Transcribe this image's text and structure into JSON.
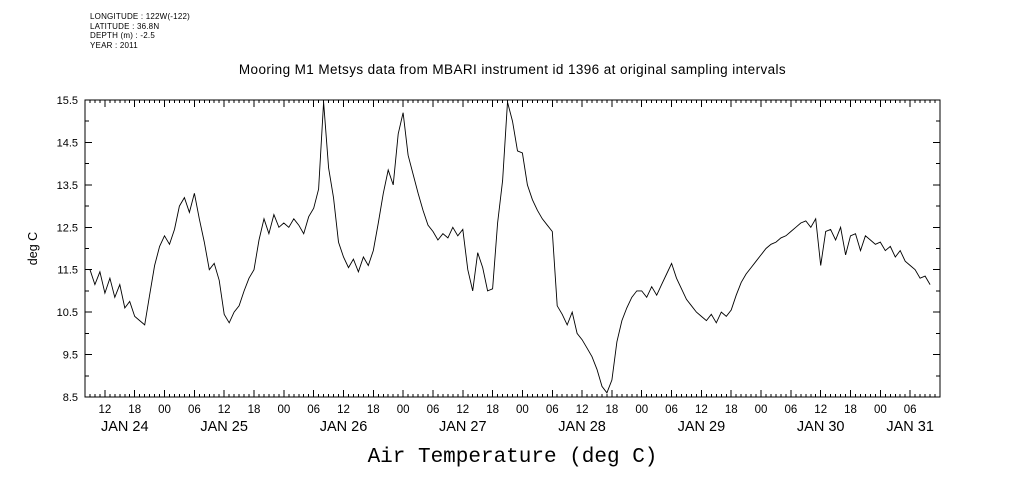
{
  "header": {
    "meta_lines": [
      "LONGITUDE : 122W(-122)",
      "LATITUDE : 36.8N",
      "DEPTH (m) : -2.5",
      "YEAR : 2011"
    ],
    "title": "Mooring M1 Metsys data from MBARI instrument id 1396 at original sampling intervals"
  },
  "footer": {
    "caption": "Air Temperature (deg C)"
  },
  "chart_data": {
    "type": "line",
    "title": "Mooring M1 Metsys data from MBARI instrument id 1396 at original sampling intervals",
    "xlabel": "Air Temperature (deg C)",
    "ylabel": "deg C",
    "year": 2011,
    "grid": false,
    "legend": "none",
    "line_color": "#000000",
    "ylim": [
      8.5,
      15.5
    ],
    "y_major_tick_interval": 1.0,
    "y_minor_tick_interval": 0.5,
    "y_tick_labels": [
      "8.5",
      "9.5",
      "10.5",
      "11.5",
      "12.5",
      "13.5",
      "14.5",
      "15.5"
    ],
    "xlim_hours_since_jan24": [
      8,
      180
    ],
    "x_ticks": {
      "start_hour": 12,
      "interval_hours": 6,
      "labels": [
        "12",
        "18",
        "00",
        "06",
        "12",
        "18",
        "00",
        "06",
        "12",
        "18",
        "00",
        "06",
        "12",
        "18",
        "00",
        "06",
        "12",
        "18",
        "00",
        "06",
        "12",
        "18",
        "00",
        "06",
        "12",
        "18",
        "00",
        "06"
      ]
    },
    "days": [
      {
        "label": "JAN 24",
        "start_hour": 0
      },
      {
        "label": "JAN 25",
        "start_hour": 24
      },
      {
        "label": "JAN 26",
        "start_hour": 48
      },
      {
        "label": "JAN 27",
        "start_hour": 72
      },
      {
        "label": "JAN 28",
        "start_hour": 96
      },
      {
        "label": "JAN 29",
        "start_hour": 120
      },
      {
        "label": "JAN 30",
        "start_hour": 144
      },
      {
        "label": "JAN 31",
        "start_hour": 168
      }
    ],
    "points_hours_degC": [
      [
        9,
        11.5
      ],
      [
        10,
        11.15
      ],
      [
        11,
        11.45
      ],
      [
        12,
        10.95
      ],
      [
        13,
        11.3
      ],
      [
        14,
        10.85
      ],
      [
        15,
        11.15
      ],
      [
        16,
        10.6
      ],
      [
        17,
        10.75
      ],
      [
        18,
        10.4
      ],
      [
        19,
        10.3
      ],
      [
        20,
        10.2
      ],
      [
        21,
        10.9
      ],
      [
        22,
        11.6
      ],
      [
        23,
        12.05
      ],
      [
        24,
        12.3
      ],
      [
        25,
        12.1
      ],
      [
        26,
        12.45
      ],
      [
        27,
        13.0
      ],
      [
        28,
        13.2
      ],
      [
        29,
        12.85
      ],
      [
        30,
        13.3
      ],
      [
        31,
        12.7
      ],
      [
        32,
        12.15
      ],
      [
        33,
        11.5
      ],
      [
        34,
        11.65
      ],
      [
        35,
        11.25
      ],
      [
        36,
        10.45
      ],
      [
        37,
        10.25
      ],
      [
        38,
        10.5
      ],
      [
        39,
        10.65
      ],
      [
        40,
        11.0
      ],
      [
        41,
        11.3
      ],
      [
        42,
        11.5
      ],
      [
        43,
        12.2
      ],
      [
        44,
        12.7
      ],
      [
        45,
        12.35
      ],
      [
        46,
        12.8
      ],
      [
        47,
        12.5
      ],
      [
        48,
        12.6
      ],
      [
        49,
        12.5
      ],
      [
        50,
        12.7
      ],
      [
        51,
        12.55
      ],
      [
        52,
        12.35
      ],
      [
        53,
        12.75
      ],
      [
        54,
        12.95
      ],
      [
        55,
        13.4
      ],
      [
        56,
        15.45
      ],
      [
        57,
        13.9
      ],
      [
        58,
        13.2
      ],
      [
        59,
        12.15
      ],
      [
        60,
        11.8
      ],
      [
        61,
        11.55
      ],
      [
        62,
        11.75
      ],
      [
        63,
        11.45
      ],
      [
        64,
        11.8
      ],
      [
        65,
        11.6
      ],
      [
        66,
        11.95
      ],
      [
        67,
        12.6
      ],
      [
        68,
        13.3
      ],
      [
        69,
        13.85
      ],
      [
        70,
        13.5
      ],
      [
        71,
        14.7
      ],
      [
        72,
        15.2
      ],
      [
        73,
        14.2
      ],
      [
        74,
        13.75
      ],
      [
        75,
        13.3
      ],
      [
        76,
        12.9
      ],
      [
        77,
        12.55
      ],
      [
        78,
        12.4
      ],
      [
        79,
        12.2
      ],
      [
        80,
        12.35
      ],
      [
        81,
        12.25
      ],
      [
        82,
        12.5
      ],
      [
        83,
        12.3
      ],
      [
        84,
        12.45
      ],
      [
        85,
        11.5
      ],
      [
        86,
        11.0
      ],
      [
        87,
        11.9
      ],
      [
        88,
        11.55
      ],
      [
        89,
        11.0
      ],
      [
        90,
        11.05
      ],
      [
        91,
        12.6
      ],
      [
        92,
        13.6
      ],
      [
        93,
        15.45
      ],
      [
        94,
        15.0
      ],
      [
        95,
        14.3
      ],
      [
        96,
        14.25
      ],
      [
        97,
        13.5
      ],
      [
        98,
        13.15
      ],
      [
        99,
        12.9
      ],
      [
        100,
        12.7
      ],
      [
        101,
        12.55
      ],
      [
        102,
        12.4
      ],
      [
        103,
        10.65
      ],
      [
        104,
        10.45
      ],
      [
        105,
        10.2
      ],
      [
        106,
        10.5
      ],
      [
        107,
        10.0
      ],
      [
        108,
        9.85
      ],
      [
        109,
        9.65
      ],
      [
        110,
        9.45
      ],
      [
        111,
        9.15
      ],
      [
        112,
        8.75
      ],
      [
        113,
        8.6
      ],
      [
        114,
        8.9
      ],
      [
        115,
        9.8
      ],
      [
        116,
        10.3
      ],
      [
        117,
        10.6
      ],
      [
        118,
        10.85
      ],
      [
        119,
        11.0
      ],
      [
        120,
        11.0
      ],
      [
        121,
        10.85
      ],
      [
        122,
        11.1
      ],
      [
        123,
        10.9
      ],
      [
        124,
        11.15
      ],
      [
        125,
        11.4
      ],
      [
        126,
        11.65
      ],
      [
        127,
        11.3
      ],
      [
        128,
        11.05
      ],
      [
        129,
        10.8
      ],
      [
        130,
        10.65
      ],
      [
        131,
        10.5
      ],
      [
        132,
        10.4
      ],
      [
        133,
        10.3
      ],
      [
        134,
        10.45
      ],
      [
        135,
        10.25
      ],
      [
        136,
        10.5
      ],
      [
        137,
        10.4
      ],
      [
        138,
        10.55
      ],
      [
        139,
        10.9
      ],
      [
        140,
        11.2
      ],
      [
        141,
        11.4
      ],
      [
        142,
        11.55
      ],
      [
        143,
        11.7
      ],
      [
        144,
        11.85
      ],
      [
        145,
        12.0
      ],
      [
        146,
        12.1
      ],
      [
        147,
        12.15
      ],
      [
        148,
        12.25
      ],
      [
        149,
        12.3
      ],
      [
        150,
        12.4
      ],
      [
        151,
        12.5
      ],
      [
        152,
        12.6
      ],
      [
        153,
        12.65
      ],
      [
        154,
        12.5
      ],
      [
        155,
        12.7
      ],
      [
        156,
        11.6
      ],
      [
        157,
        12.4
      ],
      [
        158,
        12.45
      ],
      [
        159,
        12.2
      ],
      [
        160,
        12.5
      ],
      [
        161,
        11.85
      ],
      [
        162,
        12.3
      ],
      [
        163,
        12.35
      ],
      [
        164,
        11.95
      ],
      [
        165,
        12.3
      ],
      [
        166,
        12.2
      ],
      [
        167,
        12.1
      ],
      [
        168,
        12.15
      ],
      [
        169,
        11.95
      ],
      [
        170,
        12.05
      ],
      [
        171,
        11.8
      ],
      [
        172,
        11.95
      ],
      [
        173,
        11.7
      ],
      [
        174,
        11.6
      ],
      [
        175,
        11.5
      ],
      [
        176,
        11.3
      ],
      [
        177,
        11.35
      ],
      [
        178,
        11.15
      ]
    ]
  }
}
